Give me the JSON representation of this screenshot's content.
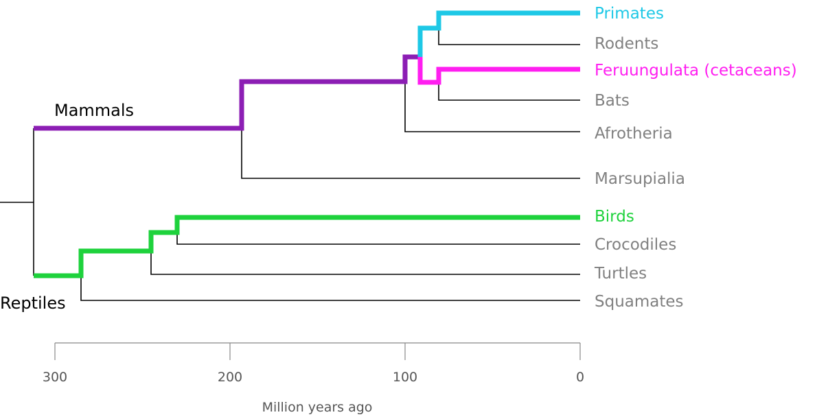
{
  "colors": {
    "primates": "#1ec8e6",
    "feruungulata": "#ff1ef0",
    "mammals": "#8c1eb4",
    "birds": "#1ed23c",
    "thin_line": "#000000",
    "taxon_gray": "#808080",
    "axis": "#888888"
  },
  "groups": {
    "mammals": "Mammals",
    "reptiles": "Reptiles"
  },
  "taxa": {
    "primates": "Primates",
    "rodents": "Rodents",
    "feruungulata": "Feruungulata (cetaceans)",
    "bats": "Bats",
    "afrotheria": "Afrotheria",
    "marsupialia": "Marsupialia",
    "birds": "Birds",
    "crocodiles": "Crocodiles",
    "turtles": "Turtles",
    "squamates": "Squamates"
  },
  "axis": {
    "title": "Million years ago",
    "ticks": [
      "300",
      "200",
      "100",
      "0"
    ]
  }
}
